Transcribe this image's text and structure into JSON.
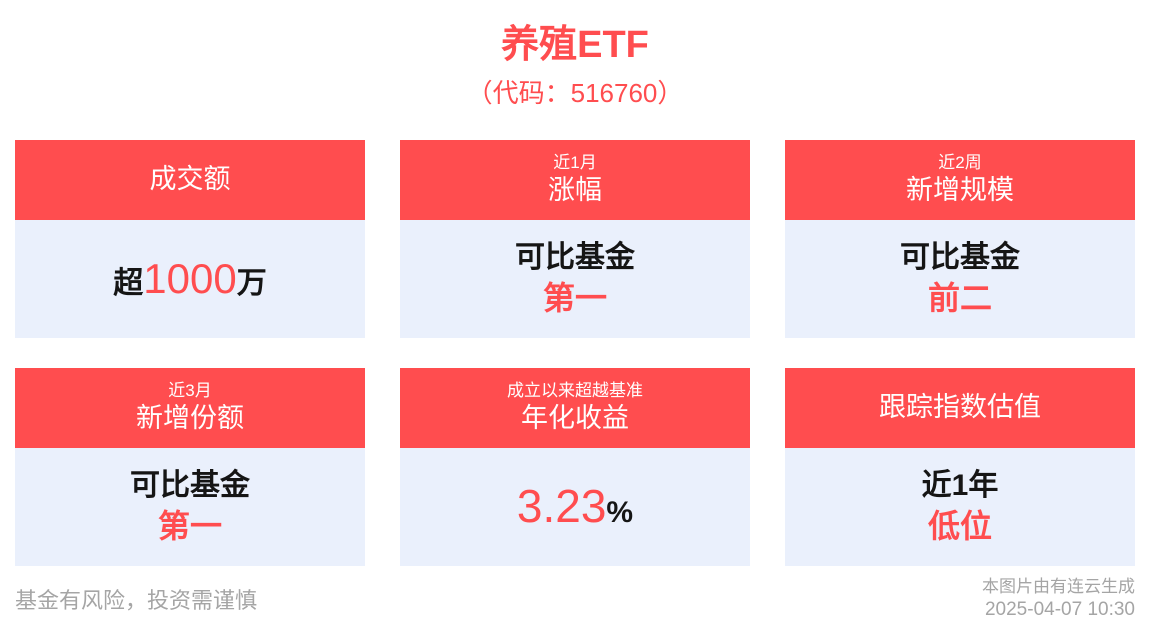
{
  "page": {
    "title": "养殖ETF",
    "subtitle": "（代码：516760）"
  },
  "colors": {
    "accent_red": "#FF4D4F",
    "header_text": "#FFFFFF",
    "card_body_bg": "#EAF0FC",
    "text_dark": "#151515",
    "text_gray": "#A5A5A5"
  },
  "cards": [
    {
      "id": "turnover",
      "header_main": "成交额",
      "value_prefix": "超",
      "value_number": "1000",
      "value_suffix": "万"
    },
    {
      "id": "gain-1m",
      "header_small": "近1月",
      "header_main": "涨幅",
      "compare_label": "可比基金",
      "rank": "第一"
    },
    {
      "id": "new-scale-2w",
      "header_small": "近2周",
      "header_main": "新增规模",
      "compare_label": "可比基金",
      "rank": "前二"
    },
    {
      "id": "new-shares-3m",
      "header_small": "近3月",
      "header_main": "新增份额",
      "compare_label": "可比基金",
      "rank": "第一"
    },
    {
      "id": "annualized-return",
      "header_small": "成立以来超越基准",
      "header_main": "年化收益",
      "value_number": "3.23",
      "value_suffix": "%"
    },
    {
      "id": "index-valuation",
      "header_main": "跟踪指数估值",
      "period_label": "近1年",
      "level": "低位"
    }
  ],
  "footer": {
    "disclaimer": "基金有风险，投资需谨慎",
    "credit": "本图片由有连云生成",
    "timestamp": "2025-04-07 10:30"
  }
}
